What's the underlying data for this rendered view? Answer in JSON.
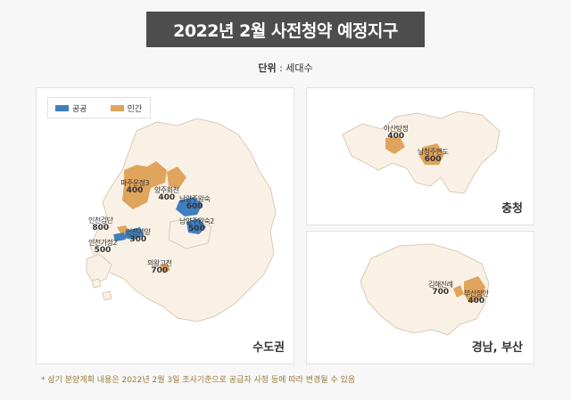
{
  "title": "2022년 2월 사전청약 예정지구",
  "unit": {
    "label": "단위",
    "value": "세대수"
  },
  "legend": [
    {
      "name": "공공",
      "color": "#3f7fc0"
    },
    {
      "name": "민간",
      "color": "#e0a45c"
    }
  ],
  "regions": [
    {
      "name": "수도권",
      "sites": [
        {
          "name": "파주운정3",
          "value": "400",
          "type": "민간"
        },
        {
          "name": "양주회천",
          "value": "400",
          "type": "민간"
        },
        {
          "name": "남양주왕숙",
          "value": "600",
          "type": "공공"
        },
        {
          "name": "남양주왕숙2",
          "value": "500",
          "type": "공공"
        },
        {
          "name": "인천검단",
          "value": "800",
          "type": "민간"
        },
        {
          "name": "인천계양",
          "value": "300",
          "type": "공공"
        },
        {
          "name": "인천가정2",
          "value": "500",
          "type": "공공"
        },
        {
          "name": "의왕고천",
          "value": "700",
          "type": "민간"
        }
      ]
    },
    {
      "name": "충청",
      "sites": [
        {
          "name": "아산탕정",
          "value": "400",
          "type": "민간"
        },
        {
          "name": "남청주현도",
          "value": "600",
          "type": "민간"
        }
      ]
    },
    {
      "name": "경남, 부산",
      "sites": [
        {
          "name": "김해진례",
          "value": "700",
          "type": "민간"
        },
        {
          "name": "부산장안",
          "value": "400",
          "type": "민간"
        }
      ]
    }
  ],
  "footnote": "* 상기 분양계획 내용은 2022년 2월 3일 조사기준으로 공급자 사정 등에 따라 변경될 수 있음"
}
